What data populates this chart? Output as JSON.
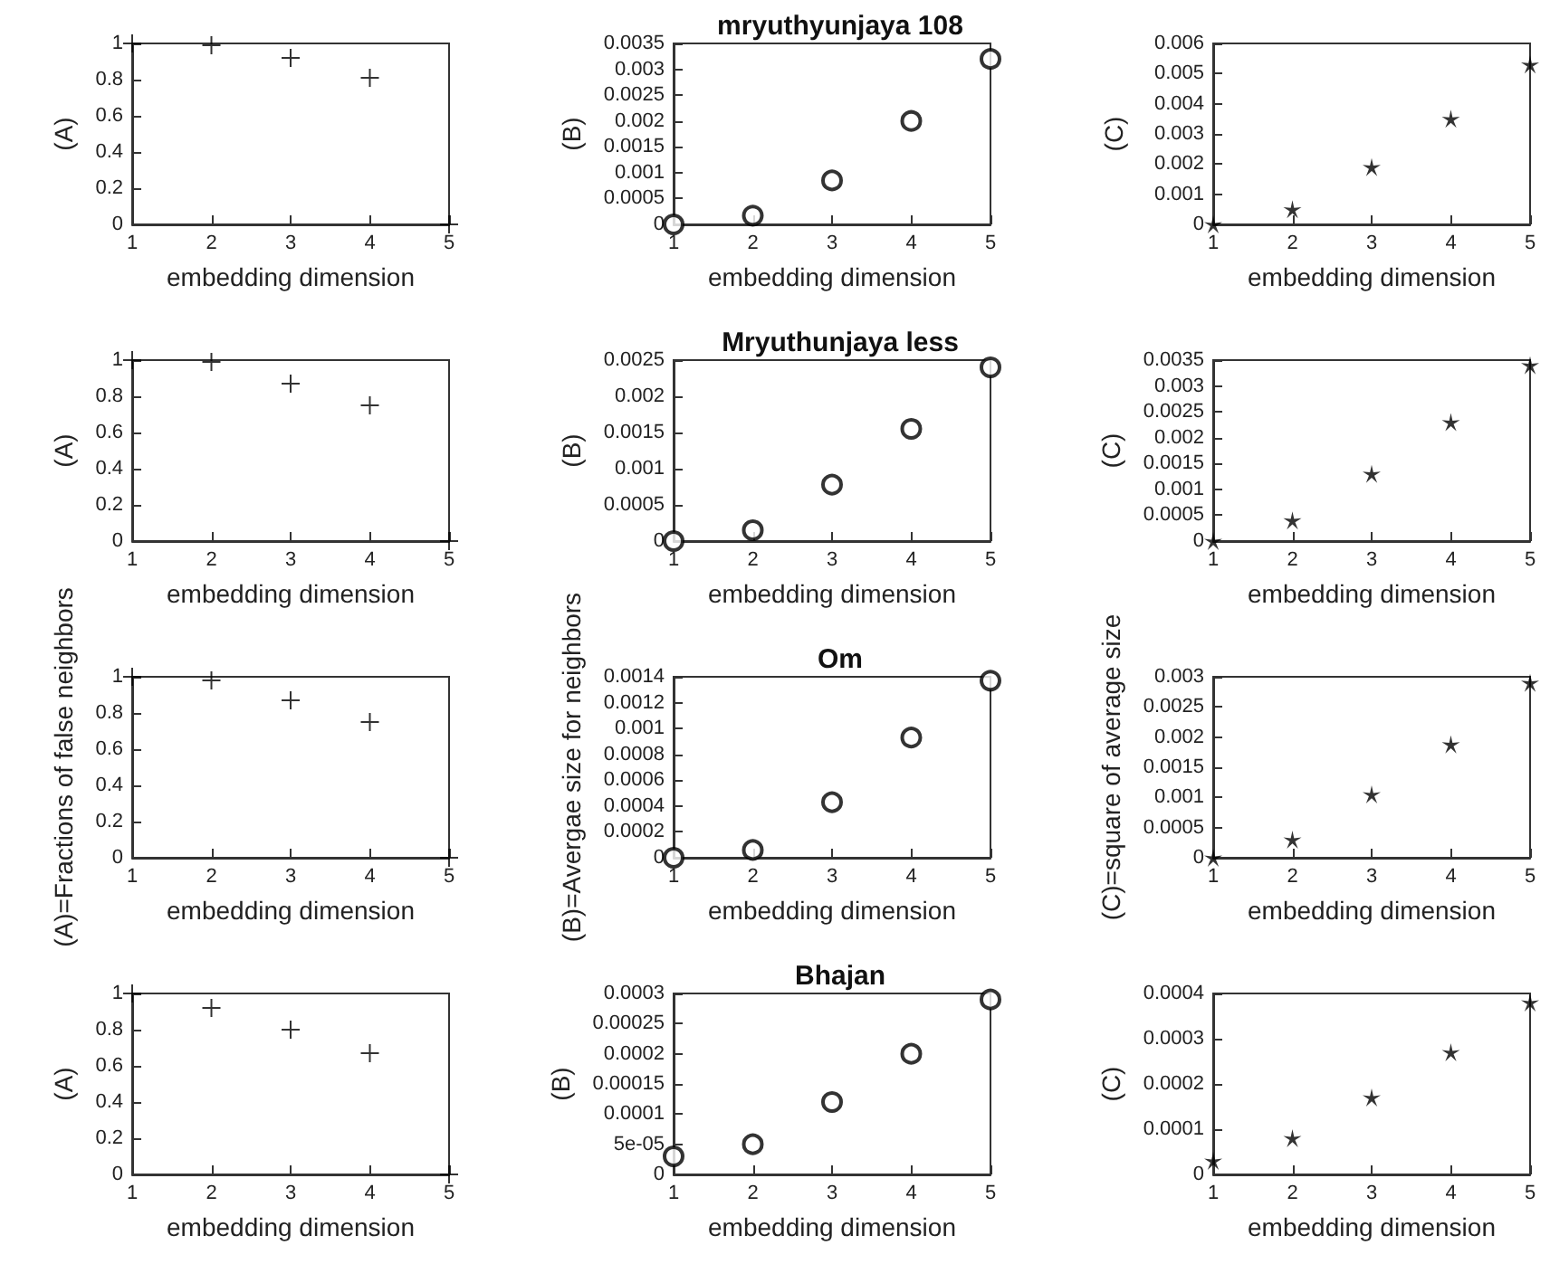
{
  "chart_data": [
    {
      "type": "scatter",
      "xlabel": "embedding dimension",
      "ylabel": "(A)",
      "x": [
        1,
        2,
        3,
        4,
        5
      ],
      "values": [
        1,
        0.99,
        0.92,
        0.81,
        0
      ],
      "color": "#000000",
      "marker": "cross",
      "xlim": [
        1,
        5
      ],
      "xticks": [
        1,
        2,
        3,
        4,
        5
      ],
      "ylim": [
        0,
        1
      ],
      "yticks": [
        0,
        0.2,
        0.4,
        0.6,
        0.8,
        1
      ],
      "grid": false
    },
    {
      "type": "scatter",
      "title": "mryuthyunjaya 108",
      "xlabel": "embedding dimension",
      "ylabel": "(B)",
      "x": [
        1,
        2,
        3,
        4,
        5
      ],
      "values": [
        0,
        0.00017,
        0.00085,
        0.002,
        0.0032
      ],
      "color": "#000000",
      "marker": "circle",
      "xlim": [
        1,
        5
      ],
      "xticks": [
        1,
        2,
        3,
        4,
        5
      ],
      "ylim": [
        0,
        0.0035
      ],
      "yticks": [
        0,
        0.0005,
        0.001,
        0.0015,
        0.002,
        0.0025,
        0.003,
        0.0035
      ],
      "grid": false
    },
    {
      "type": "scatter",
      "xlabel": "embedding dimension",
      "ylabel": "(C)",
      "x": [
        1,
        2,
        3,
        4,
        5
      ],
      "values": [
        0,
        0.0005,
        0.0019,
        0.0035,
        0.0053
      ],
      "color": "#000000",
      "marker": "star",
      "xlim": [
        1,
        5
      ],
      "xticks": [
        1,
        2,
        3,
        4,
        5
      ],
      "ylim": [
        0,
        0.006
      ],
      "yticks": [
        0,
        0.001,
        0.002,
        0.003,
        0.004,
        0.005,
        0.006
      ],
      "grid": false
    },
    {
      "type": "scatter",
      "xlabel": "embedding dimension",
      "ylabel": "(A)",
      "x": [
        1,
        2,
        3,
        4,
        5
      ],
      "values": [
        1,
        0.99,
        0.87,
        0.75,
        0
      ],
      "color": "#000000",
      "marker": "cross",
      "xlim": [
        1,
        5
      ],
      "xticks": [
        1,
        2,
        3,
        4,
        5
      ],
      "ylim": [
        0,
        1
      ],
      "yticks": [
        0,
        0.2,
        0.4,
        0.6,
        0.8,
        1
      ],
      "grid": false
    },
    {
      "type": "scatter",
      "title": "Mryuthunjaya less",
      "xlabel": "embedding dimension",
      "ylabel": "(B)",
      "x": [
        1,
        2,
        3,
        4,
        5
      ],
      "values": [
        0,
        0.00015,
        0.00078,
        0.00155,
        0.0024
      ],
      "color": "#000000",
      "marker": "circle",
      "xlim": [
        1,
        5
      ],
      "xticks": [
        1,
        2,
        3,
        4,
        5
      ],
      "ylim": [
        0,
        0.0025
      ],
      "yticks": [
        0,
        0.0005,
        0.001,
        0.0015,
        0.002,
        0.0025
      ],
      "grid": false
    },
    {
      "type": "scatter",
      "xlabel": "embedding dimension",
      "ylabel": "(C)",
      "x": [
        1,
        2,
        3,
        4,
        5
      ],
      "values": [
        0,
        0.0004,
        0.0013,
        0.0023,
        0.0034
      ],
      "color": "#000000",
      "marker": "star",
      "xlim": [
        1,
        5
      ],
      "xticks": [
        1,
        2,
        3,
        4,
        5
      ],
      "ylim": [
        0,
        0.0035
      ],
      "yticks": [
        0,
        0.0005,
        0.001,
        0.0015,
        0.002,
        0.0025,
        0.003,
        0.0035
      ],
      "grid": false
    },
    {
      "type": "scatter",
      "xlabel": "embedding dimension",
      "ylabel": "(A)=Fractions of false neighbors",
      "x": [
        1,
        2,
        3,
        4,
        5
      ],
      "values": [
        1,
        0.98,
        0.87,
        0.75,
        0
      ],
      "color": "#000000",
      "marker": "cross",
      "xlim": [
        1,
        5
      ],
      "xticks": [
        1,
        2,
        3,
        4,
        5
      ],
      "ylim": [
        0,
        1
      ],
      "yticks": [
        0,
        0.2,
        0.4,
        0.6,
        0.8,
        1
      ],
      "grid": false
    },
    {
      "type": "scatter",
      "title": "Om",
      "xlabel": "embedding dimension",
      "ylabel": "(B)=Avergae size for neighbors",
      "x": [
        1,
        2,
        3,
        4,
        5
      ],
      "values": [
        0,
        6e-05,
        0.00043,
        0.00093,
        0.00137
      ],
      "color": "#000000",
      "marker": "circle",
      "xlim": [
        1,
        5
      ],
      "xticks": [
        1,
        2,
        3,
        4,
        5
      ],
      "ylim": [
        0,
        0.0014
      ],
      "yticks": [
        0,
        0.0002,
        0.0004,
        0.0006,
        0.0008,
        0.001,
        0.0012,
        0.0014
      ],
      "grid": false
    },
    {
      "type": "scatter",
      "xlabel": "embedding dimension",
      "ylabel": "(C)=square of average size",
      "x": [
        1,
        2,
        3,
        4,
        5
      ],
      "values": [
        0,
        0.0003,
        0.00105,
        0.00188,
        0.0029
      ],
      "color": "#000000",
      "marker": "star",
      "xlim": [
        1,
        5
      ],
      "xticks": [
        1,
        2,
        3,
        4,
        5
      ],
      "ylim": [
        0,
        0.003
      ],
      "yticks": [
        0,
        0.0005,
        0.001,
        0.0015,
        0.002,
        0.0025,
        0.003
      ],
      "grid": false
    },
    {
      "type": "scatter",
      "xlabel": "embedding dimension",
      "ylabel": "(A)",
      "x": [
        1,
        2,
        3,
        4,
        5
      ],
      "values": [
        1,
        0.92,
        0.8,
        0.67,
        0
      ],
      "color": "#000000",
      "marker": "cross",
      "xlim": [
        1,
        5
      ],
      "xticks": [
        1,
        2,
        3,
        4,
        5
      ],
      "ylim": [
        0,
        1
      ],
      "yticks": [
        0,
        0.2,
        0.4,
        0.6,
        0.8,
        1
      ],
      "grid": false
    },
    {
      "type": "scatter",
      "title": "Bhajan",
      "xlabel": "embedding dimension",
      "ylabel": "(B)",
      "x": [
        1,
        2,
        3,
        4,
        5
      ],
      "values": [
        3e-05,
        5e-05,
        0.00012,
        0.0002,
        0.00029
      ],
      "color": "#000000",
      "marker": "circle",
      "xlim": [
        1,
        5
      ],
      "xticks": [
        1,
        2,
        3,
        4,
        5
      ],
      "ylim": [
        0,
        0.0003
      ],
      "yticks": [
        0,
        {
          "value": 5e-05,
          "label": "5e-05"
        },
        0.0001,
        0.00015,
        0.0002,
        0.00025,
        0.0003
      ],
      "grid": false
    },
    {
      "type": "scatter",
      "xlabel": "embedding dimension",
      "ylabel": "(C)",
      "x": [
        1,
        2,
        3,
        4,
        5
      ],
      "values": [
        3e-05,
        8e-05,
        0.00017,
        0.00027,
        0.00038
      ],
      "color": "#000000",
      "marker": "star",
      "xlim": [
        1,
        5
      ],
      "xticks": [
        1,
        2,
        3,
        4,
        5
      ],
      "ylim": [
        0,
        0.0004
      ],
      "yticks": [
        0,
        0.0001,
        0.0002,
        0.0003,
        0.0004
      ],
      "grid": false
    }
  ]
}
